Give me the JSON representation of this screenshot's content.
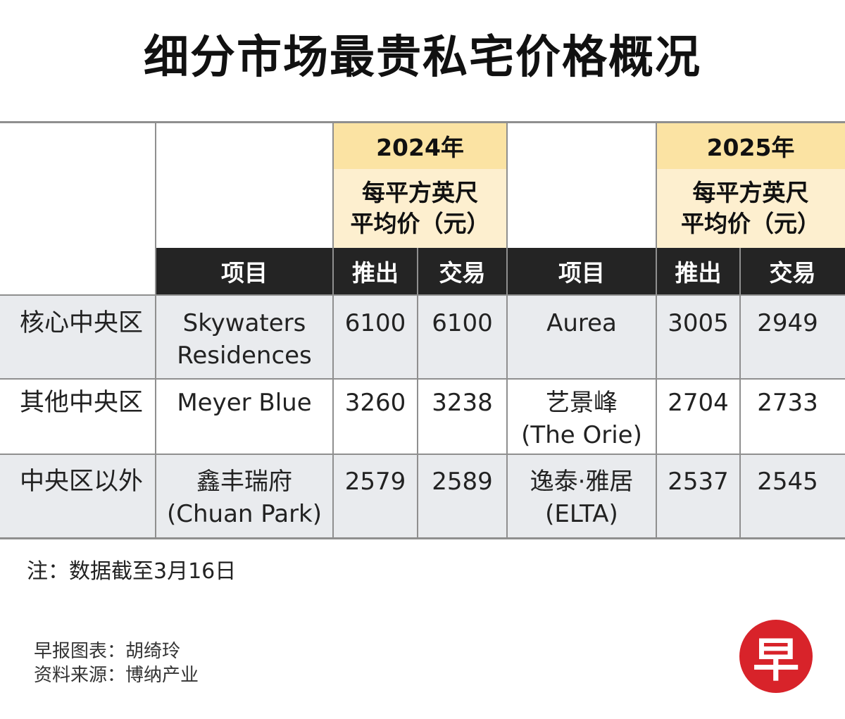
{
  "title": "细分市场最贵私宅价格概况",
  "columns": {
    "y2024": {
      "year": "2024年",
      "unit_line1": "每平方英尺",
      "unit_line2": "平均价（元）"
    },
    "y2025": {
      "year": "2025年",
      "unit_line1": "每平方英尺",
      "unit_line2": "平均价（元）"
    },
    "project_label": "项目",
    "launch_label": "推出",
    "transaction_label": "交易"
  },
  "rows": [
    {
      "region": "核心中央区",
      "p2024_line1": "Skywaters",
      "p2024_line2": "Residences",
      "launch2024": "6100",
      "trans2024": "6100",
      "p2025_line1": "Aurea",
      "p2025_line2": "",
      "launch2025": "3005",
      "trans2025": "2949"
    },
    {
      "region": "其他中央区",
      "p2024_line1": "Meyer Blue",
      "p2024_line2": "",
      "launch2024": "3260",
      "trans2024": "3238",
      "p2025_line1": "艺景峰",
      "p2025_line2": "(The Orie)",
      "launch2025": "2704",
      "trans2025": "2733"
    },
    {
      "region": "中央区以外",
      "p2024_line1": "鑫丰瑞府",
      "p2024_line2": "(Chuan Park)",
      "launch2024": "2579",
      "trans2024": "2589",
      "p2025_line1": "逸泰·雅居",
      "p2025_line2": "(ELTA)",
      "launch2025": "2537",
      "trans2025": "2545"
    }
  ],
  "note": "注：数据截至3月16日",
  "credits": {
    "chart_by": "早报图表：胡绮玲",
    "source": "资料来源：博纳产业"
  },
  "logo": {
    "glyph": "早",
    "color": "#d8232a"
  },
  "colors": {
    "year_bg": "#fbe3a3",
    "unit_bg": "#fdefcf",
    "header_bg": "#242424",
    "row_alt_bg": "#e9ebee"
  }
}
